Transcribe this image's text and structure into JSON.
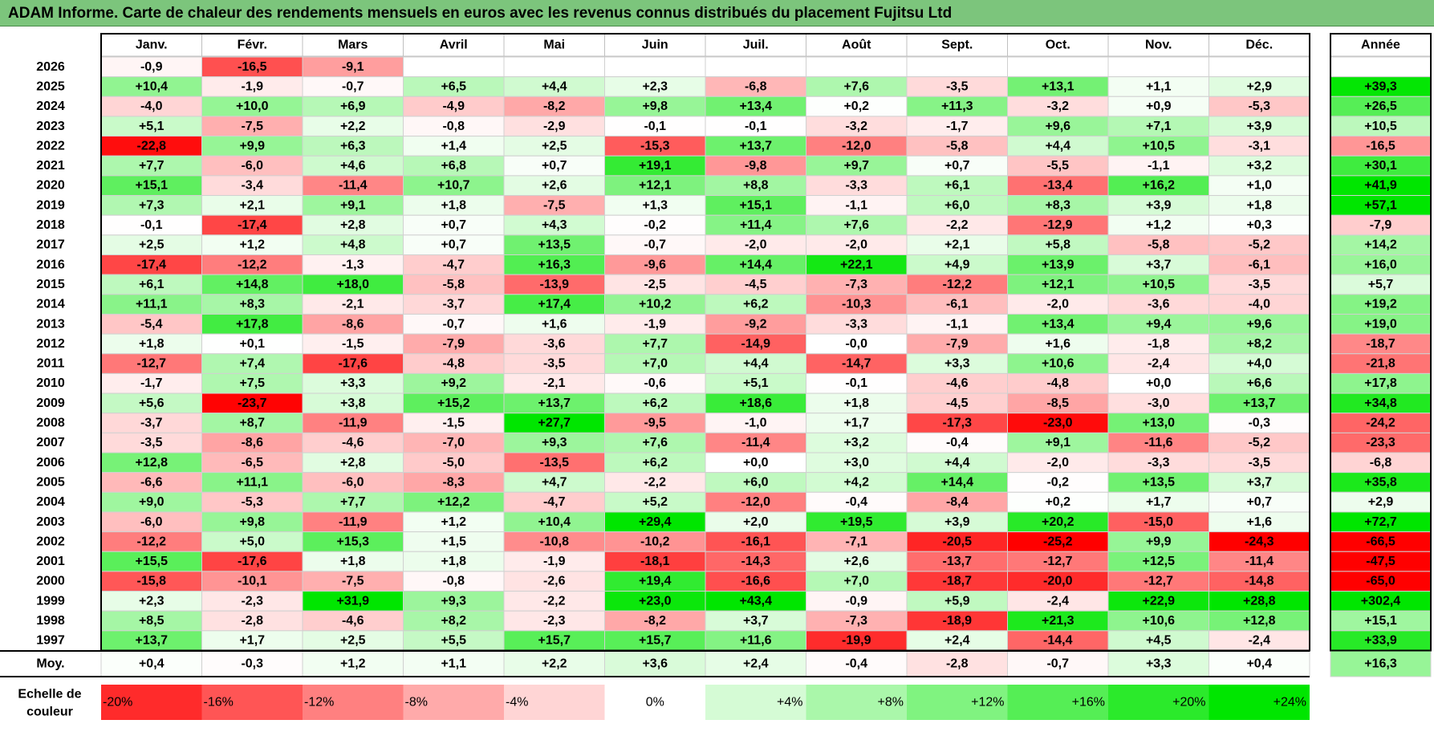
{
  "title": "ADAM Informe. Carte de chaleur des rendements mensuels en euros avec les revenus connus distribués du placement Fujitsu Ltd",
  "chart_data": {
    "type": "heatmap",
    "months": [
      "Janv.",
      "Févr.",
      "Mars",
      "Avril",
      "Mai",
      "Juin",
      "Juil.",
      "Août",
      "Sept.",
      "Oct.",
      "Nov.",
      "Déc."
    ],
    "annual_header": "Année",
    "avg_label": "Moy.",
    "rows": [
      {
        "year": "2026",
        "values": [
          "-0,9",
          "-16,5",
          "-9,1",
          "",
          "",
          "",
          "",
          "",
          "",
          "",
          "",
          ""
        ],
        "annual": ""
      },
      {
        "year": "2025",
        "values": [
          "+10,4",
          "-1,9",
          "-0,7",
          "+6,5",
          "+4,4",
          "+2,3",
          "-6,8",
          "+7,6",
          "-3,5",
          "+13,1",
          "+1,1",
          "+2,9"
        ],
        "annual": "+39,3"
      },
      {
        "year": "2024",
        "values": [
          "-4,0",
          "+10,0",
          "+6,9",
          "-4,9",
          "-8,2",
          "+9,8",
          "+13,4",
          "+0,2",
          "+11,3",
          "-3,2",
          "+0,9",
          "-5,3"
        ],
        "annual": "+26,5"
      },
      {
        "year": "2023",
        "values": [
          "+5,1",
          "-7,5",
          "+2,2",
          "-0,8",
          "-2,9",
          "-0,1",
          "-0,1",
          "-3,2",
          "-1,7",
          "+9,6",
          "+7,1",
          "+3,9"
        ],
        "annual": "+10,5"
      },
      {
        "year": "2022",
        "values": [
          "-22,8",
          "+9,9",
          "+6,3",
          "+1,4",
          "+2,5",
          "-15,3",
          "+13,7",
          "-12,0",
          "-5,8",
          "+4,4",
          "+10,5",
          "-3,1"
        ],
        "annual": "-16,5"
      },
      {
        "year": "2021",
        "values": [
          "+7,7",
          "-6,0",
          "+4,6",
          "+6,8",
          "+0,7",
          "+19,1",
          "-9,8",
          "+9,7",
          "+0,7",
          "-5,5",
          "-1,1",
          "+3,2"
        ],
        "annual": "+30,1"
      },
      {
        "year": "2020",
        "values": [
          "+15,1",
          "-3,4",
          "-11,4",
          "+10,7",
          "+2,6",
          "+12,1",
          "+8,8",
          "-3,3",
          "+6,1",
          "-13,4",
          "+16,2",
          "+1,0"
        ],
        "annual": "+41,9"
      },
      {
        "year": "2019",
        "values": [
          "+7,3",
          "+2,1",
          "+9,1",
          "+1,8",
          "-7,5",
          "+1,3",
          "+15,1",
          "-1,1",
          "+6,0",
          "+8,3",
          "+3,9",
          "+1,8"
        ],
        "annual": "+57,1"
      },
      {
        "year": "2018",
        "values": [
          "-0,1",
          "-17,4",
          "+2,8",
          "+0,7",
          "+4,3",
          "-0,2",
          "+11,4",
          "+7,6",
          "-2,2",
          "-12,9",
          "+1,2",
          "+0,3"
        ],
        "annual": "-7,9"
      },
      {
        "year": "2017",
        "values": [
          "+2,5",
          "+1,2",
          "+4,8",
          "+0,7",
          "+13,5",
          "-0,7",
          "-2,0",
          "-2,0",
          "+2,1",
          "+5,8",
          "-5,8",
          "-5,2"
        ],
        "annual": "+14,2"
      },
      {
        "year": "2016",
        "values": [
          "-17,4",
          "-12,2",
          "-1,3",
          "-4,7",
          "+16,3",
          "-9,6",
          "+14,4",
          "+22,1",
          "+4,9",
          "+13,9",
          "+3,7",
          "-6,1"
        ],
        "annual": "+16,0"
      },
      {
        "year": "2015",
        "values": [
          "+6,1",
          "+14,8",
          "+18,0",
          "-5,8",
          "-13,9",
          "-2,5",
          "-4,5",
          "-7,3",
          "-12,2",
          "+12,1",
          "+10,5",
          "-3,5"
        ],
        "annual": "+5,7"
      },
      {
        "year": "2014",
        "values": [
          "+11,1",
          "+8,3",
          "-2,1",
          "-3,7",
          "+17,4",
          "+10,2",
          "+6,2",
          "-10,3",
          "-6,1",
          "-2,0",
          "-3,6",
          "-4,0"
        ],
        "annual": "+19,2"
      },
      {
        "year": "2013",
        "values": [
          "-5,4",
          "+17,8",
          "-8,6",
          "-0,7",
          "+1,6",
          "-1,9",
          "-9,2",
          "-3,3",
          "-1,1",
          "+13,4",
          "+9,4",
          "+9,6"
        ],
        "annual": "+19,0"
      },
      {
        "year": "2012",
        "values": [
          "+1,8",
          "+0,1",
          "-1,5",
          "-7,9",
          "-3,6",
          "+7,7",
          "-14,9",
          "-0,0",
          "-7,9",
          "+1,6",
          "-1,8",
          "+8,2"
        ],
        "annual": "-18,7"
      },
      {
        "year": "2011",
        "values": [
          "-12,7",
          "+7,4",
          "-17,6",
          "-4,8",
          "-3,5",
          "+7,0",
          "+4,4",
          "-14,7",
          "+3,3",
          "+10,6",
          "-2,4",
          "+4,0"
        ],
        "annual": "-21,8"
      },
      {
        "year": "2010",
        "values": [
          "-1,7",
          "+7,5",
          "+3,3",
          "+9,2",
          "-2,1",
          "-0,6",
          "+5,1",
          "-0,1",
          "-4,6",
          "-4,8",
          "+0,0",
          "+6,6"
        ],
        "annual": "+17,8"
      },
      {
        "year": "2009",
        "values": [
          "+5,6",
          "-23,7",
          "+3,8",
          "+15,2",
          "+13,7",
          "+6,2",
          "+18,6",
          "+1,8",
          "-4,5",
          "-8,5",
          "-3,0",
          "+13,7"
        ],
        "annual": "+34,8"
      },
      {
        "year": "2008",
        "values": [
          "-3,7",
          "+8,7",
          "-11,9",
          "-1,5",
          "+27,7",
          "-9,5",
          "-1,0",
          "+1,7",
          "-17,3",
          "-23,0",
          "+13,0",
          "-0,3"
        ],
        "annual": "-24,2"
      },
      {
        "year": "2007",
        "values": [
          "-3,5",
          "-8,6",
          "-4,6",
          "-7,0",
          "+9,3",
          "+7,6",
          "-11,4",
          "+3,2",
          "-0,4",
          "+9,1",
          "-11,6",
          "-5,2"
        ],
        "annual": "-23,3"
      },
      {
        "year": "2006",
        "values": [
          "+12,8",
          "-6,5",
          "+2,8",
          "-5,0",
          "-13,5",
          "+6,2",
          "+0,0",
          "+3,0",
          "+4,4",
          "-2,0",
          "-3,3",
          "-3,5"
        ],
        "annual": "-6,8"
      },
      {
        "year": "2005",
        "values": [
          "-6,6",
          "+11,1",
          "-6,0",
          "-8,3",
          "+4,7",
          "-2,2",
          "+6,0",
          "+4,2",
          "+14,4",
          "-0,2",
          "+13,5",
          "+3,7"
        ],
        "annual": "+35,8"
      },
      {
        "year": "2004",
        "values": [
          "+9,0",
          "-5,3",
          "+7,7",
          "+12,2",
          "-4,7",
          "+5,2",
          "-12,0",
          "-0,4",
          "-8,4",
          "+0,2",
          "+1,7",
          "+0,7"
        ],
        "annual": "+2,9"
      },
      {
        "year": "2003",
        "values": [
          "-6,0",
          "+9,8",
          "-11,9",
          "+1,2",
          "+10,4",
          "+29,4",
          "+2,0",
          "+19,5",
          "+3,9",
          "+20,2",
          "-15,0",
          "+1,6"
        ],
        "annual": "+72,7"
      },
      {
        "year": "2002",
        "values": [
          "-12,2",
          "+5,0",
          "+15,3",
          "+1,5",
          "-10,8",
          "-10,2",
          "-16,1",
          "-7,1",
          "-20,5",
          "-25,2",
          "+9,9",
          "-24,3"
        ],
        "annual": "-66,5"
      },
      {
        "year": "2001",
        "values": [
          "+15,5",
          "-17,6",
          "+1,8",
          "+1,8",
          "-1,9",
          "-18,1",
          "-14,3",
          "+2,6",
          "-13,7",
          "-12,7",
          "+12,5",
          "-11,4"
        ],
        "annual": "-47,5"
      },
      {
        "year": "2000",
        "values": [
          "-15,8",
          "-10,1",
          "-7,5",
          "-0,8",
          "-2,6",
          "+19,4",
          "-16,6",
          "+7,0",
          "-18,7",
          "-20,0",
          "-12,7",
          "-14,8"
        ],
        "annual": "-65,0"
      },
      {
        "year": "1999",
        "values": [
          "+2,3",
          "-2,3",
          "+31,9",
          "+9,3",
          "-2,2",
          "+23,0",
          "+43,4",
          "-0,9",
          "+5,9",
          "-2,4",
          "+22,9",
          "+28,8"
        ],
        "annual": "+302,4"
      },
      {
        "year": "1998",
        "values": [
          "+8,5",
          "-2,8",
          "-4,6",
          "+8,2",
          "-2,3",
          "-8,2",
          "+3,7",
          "-7,3",
          "-18,9",
          "+21,3",
          "+10,6",
          "+12,8"
        ],
        "annual": "+15,1"
      },
      {
        "year": "1997",
        "values": [
          "+13,7",
          "+1,7",
          "+2,5",
          "+5,5",
          "+15,7",
          "+15,7",
          "+11,6",
          "-19,9",
          "+2,4",
          "-14,4",
          "+4,5",
          "-2,4"
        ],
        "annual": "+33,9"
      }
    ],
    "average": {
      "values": [
        "+0,4",
        "-0,3",
        "+1,2",
        "+1,1",
        "+2,2",
        "+3,6",
        "+2,4",
        "-0,4",
        "-2,8",
        "-0,7",
        "+3,3",
        "+0,4"
      ],
      "annual": "+16,3"
    },
    "scale": {
      "label_line1": "Echelle de",
      "label_line2": "couleur",
      "steps": [
        "-20%",
        "-16%",
        "-12%",
        "-8%",
        "-4%",
        "0%",
        "+4%",
        "+8%",
        "+12%",
        "+16%",
        "+20%",
        "+24%"
      ]
    }
  }
}
